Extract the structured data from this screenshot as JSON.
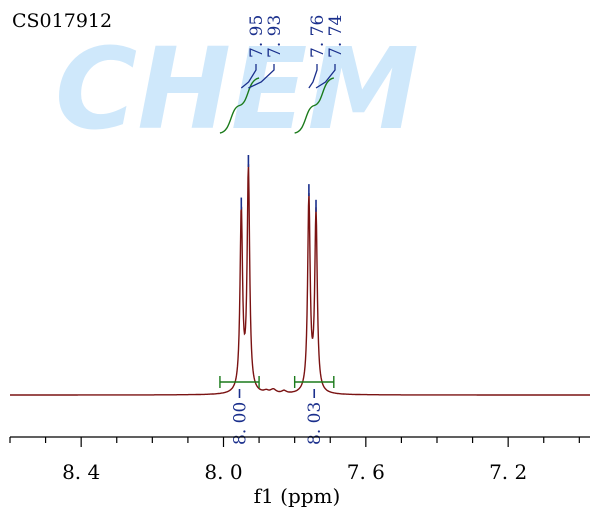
{
  "sample_id": "CS017912",
  "watermark": "CHEM",
  "colors": {
    "spectrum": "#7a1212",
    "integral": "#1a7a1a",
    "peak_label": "#1a2f8c",
    "axis": "#000000",
    "watermark": "#cfe8fb"
  },
  "chart_data": {
    "type": "line",
    "xlabel": "f1 (ppm)",
    "xlim": [
      8.6,
      6.97
    ],
    "x_reversed": true,
    "ticks": {
      "major": [
        8.4,
        8.0,
        7.6,
        7.2
      ],
      "major_labels": [
        "8. 4",
        "8. 0",
        "7. 6",
        "7. 2"
      ],
      "minor_step": 0.1
    },
    "peaks": [
      {
        "ppm": 7.95,
        "label": "7. 95",
        "height": 0.81
      },
      {
        "ppm": 7.93,
        "label": "7. 93",
        "height": 1.0
      },
      {
        "ppm": 7.76,
        "label": "7. 76",
        "height": 0.87
      },
      {
        "ppm": 7.74,
        "label": "7. 74",
        "height": 0.8
      }
    ],
    "integrals": [
      {
        "from": 8.01,
        "to": 7.9,
        "value_label": "8. 00"
      },
      {
        "from": 7.8,
        "to": 7.69,
        "value_label": "8. 03"
      }
    ]
  }
}
